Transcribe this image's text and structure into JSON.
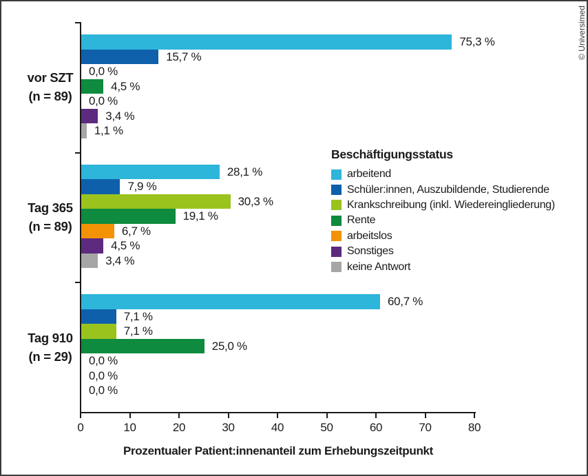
{
  "credit": "© Universimed",
  "chart_data": {
    "type": "bar",
    "orientation": "horizontal",
    "title": "",
    "xlabel": "Prozentualer Patient:innenanteil zum Erhebungszeitpunkt",
    "ylabel": "",
    "xlim": [
      0,
      80
    ],
    "xticks": [
      0,
      10,
      20,
      30,
      40,
      50,
      60,
      70,
      80
    ],
    "grid": "off",
    "legend_position": "right-middle",
    "legend_title": "Beschäftigungsstatus",
    "categories": [
      {
        "name": "arbeitend",
        "color": "#2eb5da"
      },
      {
        "name": "Schüler:innen, Auszubildende, Studierende",
        "color": "#0f60aa"
      },
      {
        "name": "Krankschreibung (inkl. Wiedereingliederung)",
        "color": "#9ac31e"
      },
      {
        "name": "Rente",
        "color": "#0e8b3e"
      },
      {
        "name": "arbeitslos",
        "color": "#f29204"
      },
      {
        "name": "Sonstiges",
        "color": "#5c2a7e"
      },
      {
        "name": "keine Antwort",
        "color": "#a6a6a6"
      }
    ],
    "groups": [
      {
        "label": "vor SZT",
        "n_label": "(n = 89)",
        "values": [
          75.3,
          15.7,
          0.0,
          4.5,
          0.0,
          3.4,
          1.1
        ],
        "value_labels": [
          "75,3 %",
          "15,7 %",
          "0,0 %",
          "4,5 %",
          "0,0 %",
          "3,4 %",
          "1,1 %"
        ]
      },
      {
        "label": "Tag 365",
        "n_label": "(n = 89)",
        "values": [
          28.1,
          7.9,
          30.3,
          19.1,
          6.7,
          4.5,
          3.4
        ],
        "value_labels": [
          "28,1 %",
          "7,9 %",
          "30,3 %",
          "19,1 %",
          "6,7 %",
          "4,5 %",
          "3,4 %"
        ]
      },
      {
        "label": "Tag 910",
        "n_label": "(n = 29)",
        "values": [
          60.7,
          7.1,
          7.1,
          25.0,
          0.0,
          0.0,
          0.0
        ],
        "value_labels": [
          "60,7 %",
          "7,1 %",
          "7,1 %",
          "25,0 %",
          "0,0 %",
          "0,0 %",
          "0,0 %"
        ]
      }
    ]
  }
}
